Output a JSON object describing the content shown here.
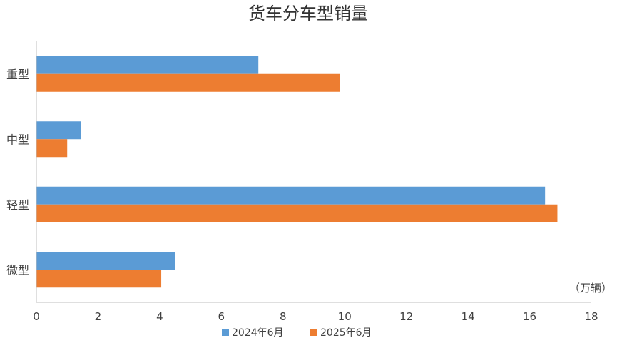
{
  "chart_data": {
    "type": "bar",
    "orientation": "horizontal",
    "title": "货车分车型销量",
    "unit_label": "（万辆）",
    "categories": [
      "重型",
      "中型",
      "轻型",
      "微型"
    ],
    "series": [
      {
        "name": "2024年6月",
        "color": "#5b9bd5",
        "values": [
          7.2,
          1.45,
          16.5,
          4.5
        ]
      },
      {
        "name": "2025年6月",
        "color": "#ed7d31",
        "values": [
          9.85,
          1.0,
          16.9,
          4.05
        ]
      }
    ],
    "xlim": [
      0,
      18
    ],
    "xticks": [
      "0",
      "2",
      "4",
      "6",
      "8",
      "10",
      "12",
      "14",
      "16",
      "18"
    ],
    "grid": false,
    "legend_position": "bottom"
  }
}
